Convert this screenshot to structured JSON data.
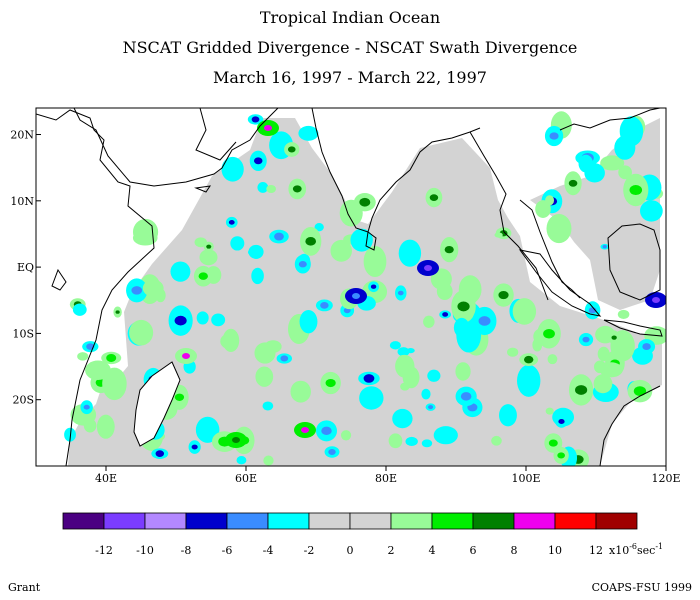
{
  "header": {
    "title": "Tropical Indian Ocean",
    "subtitle": "NSCAT Gridded Divergence - NSCAT Swath Divergence",
    "dates": "March 16, 1997 - March 22, 1997"
  },
  "map": {
    "lon_range": [
      30,
      120
    ],
    "lat_range": [
      -30,
      24
    ],
    "lon_ticks": [
      {
        "value": 40,
        "label": "40E"
      },
      {
        "value": 60,
        "label": "60E"
      },
      {
        "value": 80,
        "label": "80E"
      },
      {
        "value": 100,
        "label": "100E"
      },
      {
        "value": 120,
        "label": "120E"
      }
    ],
    "lat_ticks": [
      {
        "value": 20,
        "label": "20N"
      },
      {
        "value": 10,
        "label": "10N"
      },
      {
        "value": 0,
        "label": "EQ"
      },
      {
        "value": -10,
        "label": "10S"
      },
      {
        "value": -20,
        "label": "20S"
      }
    ],
    "no_data_color": "#ffffff",
    "land_outline_color": "#000000"
  },
  "legend": {
    "colors": [
      "#4b0082",
      "#7b3cff",
      "#b388ff",
      "#0000cd",
      "#3a8cff",
      "#00ffff",
      "#d3d3d3",
      "#d3d3d3",
      "#98fb98",
      "#00ee00",
      "#008000",
      "#ee00ee",
      "#ff0000",
      "#a00000"
    ],
    "labels": [
      "-12",
      "-10",
      "-8",
      "-6",
      "-4",
      "-2",
      "0",
      "2",
      "4",
      "6",
      "8",
      "10",
      "12"
    ],
    "unit": "x10",
    "unit_exponent": "-6",
    "unit_suffix": "sec",
    "unit_suffix_exponent": "-1"
  },
  "footer": {
    "left": "Grant",
    "right": "COAPS-FSU 1999"
  }
}
